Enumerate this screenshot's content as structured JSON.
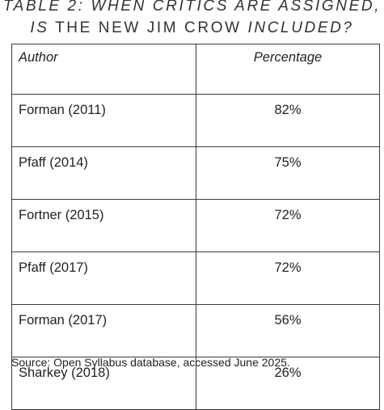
{
  "title": {
    "line1": "TABLE 2: WHEN CRITICS ARE ASSIGNED,",
    "line2_prefix": "IS",
    "line2_middle": " THE NEW JIM CROW ",
    "line2_suffix": "INCLUDED?"
  },
  "table": {
    "headers": [
      "Author",
      "Percentage"
    ],
    "rows": [
      {
        "author": "Forman (2011)",
        "percentage": "82%"
      },
      {
        "author": "Pfaff (2014)",
        "percentage": "75%"
      },
      {
        "author": "Fortner (2015)",
        "percentage": "72%"
      },
      {
        "author": "Pfaff (2017)",
        "percentage": "72%"
      },
      {
        "author": "Forman (2017)",
        "percentage": "56%"
      },
      {
        "author": "Sharkey (2018)",
        "percentage": "26%"
      }
    ]
  },
  "source": "Source: Open Syllabus database, accessed June 2025."
}
